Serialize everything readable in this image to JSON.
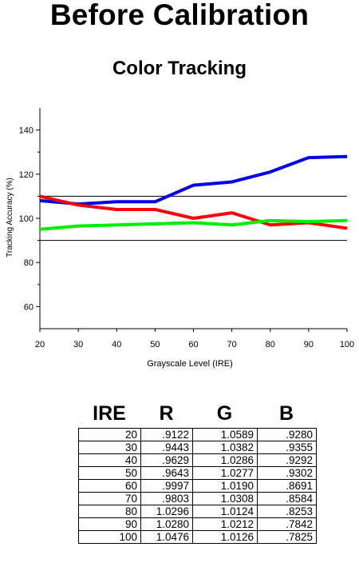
{
  "page": {
    "title": "Before Calibration"
  },
  "chart_data": {
    "type": "line",
    "title": "Color Tracking",
    "xlabel": "Grayscale Level (IRE)",
    "ylabel": "Tracking Accuracy (%)",
    "x": [
      20,
      30,
      40,
      50,
      60,
      70,
      80,
      90,
      100
    ],
    "xlim": [
      20,
      100
    ],
    "ylim": [
      50,
      150
    ],
    "yticks": [
      60,
      80,
      100,
      120,
      140
    ],
    "xticks": [
      20,
      30,
      40,
      50,
      60,
      70,
      80,
      90,
      100
    ],
    "reference_lines": [
      110,
      90
    ],
    "grid": false,
    "legend": "none",
    "series": [
      {
        "color": "#0000ee",
        "values": [
          108,
          106.5,
          107.5,
          107.5,
          115,
          116.5,
          121,
          127.5,
          128
        ]
      },
      {
        "color": "#ff0000",
        "values": [
          110,
          106,
          104,
          104,
          100,
          102.5,
          97,
          98,
          95.5
        ]
      },
      {
        "color": "#00ee00",
        "values": [
          95,
          96.5,
          97,
          97.5,
          98,
          97,
          99,
          98.5,
          99
        ]
      }
    ]
  },
  "table": {
    "headers": [
      "IRE",
      "R",
      "G",
      "B"
    ],
    "rows": [
      [
        "20",
        ".9122",
        "1.0589",
        ".9280"
      ],
      [
        "30",
        ".9443",
        "1.0382",
        ".9355"
      ],
      [
        "40",
        ".9629",
        "1.0286",
        ".9292"
      ],
      [
        "50",
        ".9643",
        "1.0277",
        ".9302"
      ],
      [
        "60",
        ".9997",
        "1.0190",
        ".8691"
      ],
      [
        "70",
        ".9803",
        "1.0308",
        ".8584"
      ],
      [
        "80",
        "1.0296",
        "1.0124",
        ".8253"
      ],
      [
        "90",
        "1.0280",
        "1.0212",
        ".7842"
      ],
      [
        "100",
        "1.0476",
        "1.0126",
        ".7825"
      ]
    ]
  }
}
